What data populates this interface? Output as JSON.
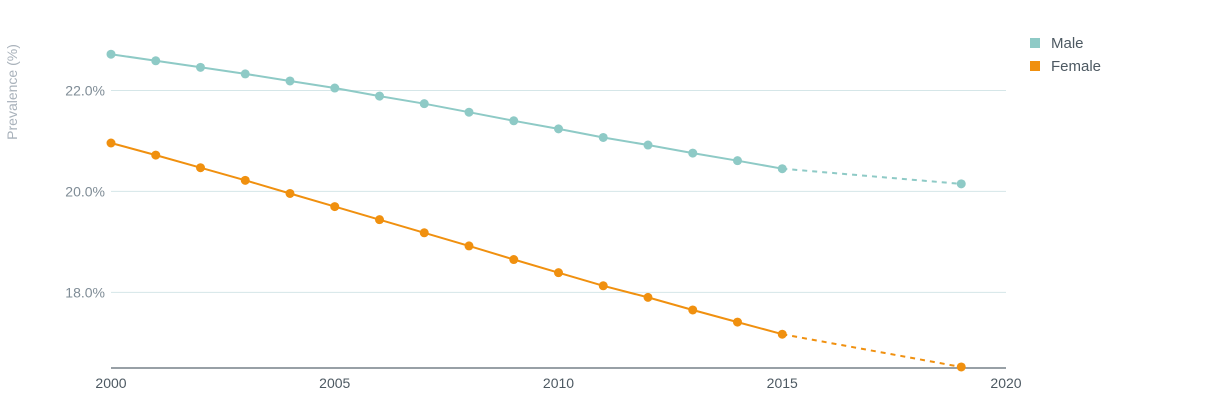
{
  "chart_data": {
    "type": "line",
    "ylabel": "Prevalence (%)",
    "xlim": [
      2000,
      2020
    ],
    "ylim": [
      16.5,
      23.2
    ],
    "x_ticks": [
      2000,
      2005,
      2010,
      2015,
      2020
    ],
    "y_ticks": [
      18.0,
      20.0,
      22.0
    ],
    "y_tick_labels": [
      "18.0%",
      "20.0%",
      "22.0%"
    ],
    "grid": "horizontal",
    "legend_position": "top-right",
    "series": [
      {
        "name": "Male",
        "color": "#8ecac6",
        "x": [
          2000,
          2001,
          2002,
          2003,
          2004,
          2005,
          2006,
          2007,
          2008,
          2009,
          2010,
          2011,
          2012,
          2013,
          2014,
          2015
        ],
        "values": [
          22.72,
          22.59,
          22.46,
          22.33,
          22.19,
          22.05,
          21.89,
          21.74,
          21.57,
          21.4,
          21.24,
          21.07,
          20.92,
          20.76,
          20.61,
          20.45
        ],
        "projected_x": [
          2015,
          2019
        ],
        "projected_values": [
          20.45,
          20.15
        ]
      },
      {
        "name": "Female",
        "color": "#f0900f",
        "x": [
          2000,
          2001,
          2002,
          2003,
          2004,
          2005,
          2006,
          2007,
          2008,
          2009,
          2010,
          2011,
          2012,
          2013,
          2014,
          2015
        ],
        "values": [
          20.96,
          20.72,
          20.47,
          20.22,
          19.96,
          19.7,
          19.44,
          19.18,
          18.92,
          18.65,
          18.39,
          18.13,
          17.9,
          17.65,
          17.41,
          17.17
        ],
        "projected_x": [
          2015,
          2019
        ],
        "projected_values": [
          17.17,
          16.52
        ]
      }
    ]
  }
}
